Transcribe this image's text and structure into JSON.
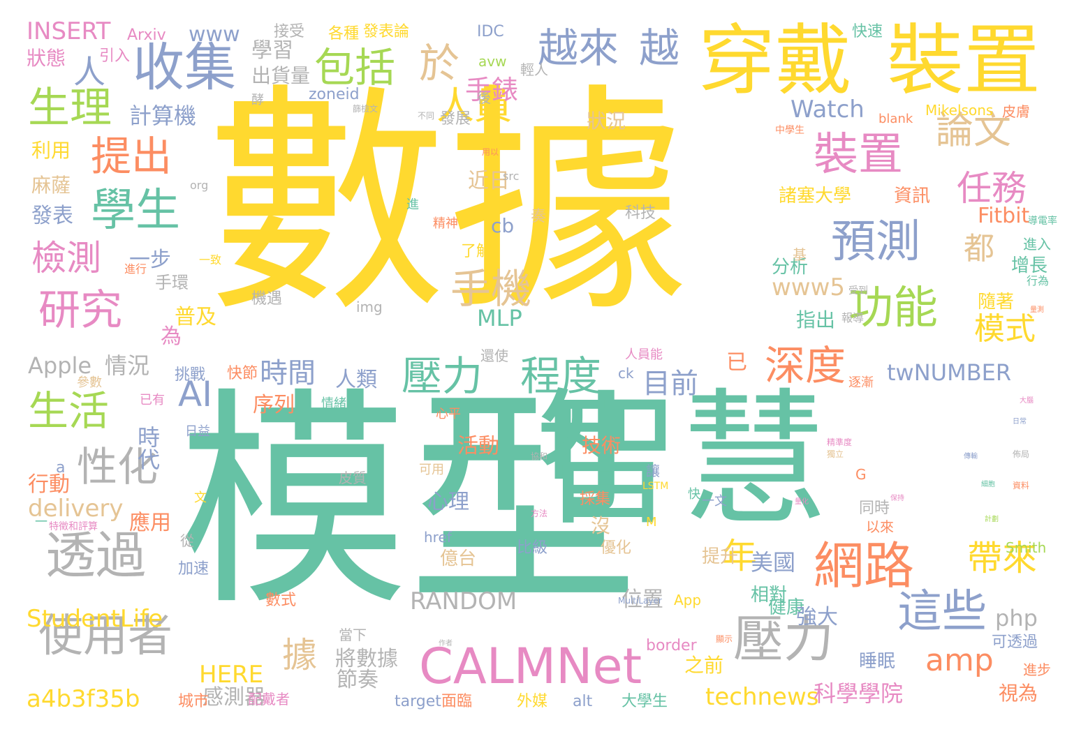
{
  "palette": {
    "yellow": "#ffd92f",
    "teal": "#66c2a5",
    "orange": "#fc8d62",
    "blue": "#8da0cb",
    "pink": "#e78ac3",
    "green": "#a6d854",
    "tan": "#e5c494",
    "gray": "#b3b3b3"
  },
  "words": [
    {
      "text": "數據",
      "color": "yellow"
    },
    {
      "text": "模型",
      "color": "teal"
    },
    {
      "text": "智慧",
      "color": "teal"
    },
    {
      "text": "穿戴",
      "color": "yellow"
    },
    {
      "text": "裝置",
      "color": "yellow"
    },
    {
      "text": "收集",
      "color": "blue"
    },
    {
      "text": "越來",
      "color": "blue"
    },
    {
      "text": "越",
      "color": "blue"
    },
    {
      "text": "包括",
      "color": "green"
    },
    {
      "text": "於",
      "color": "tan"
    },
    {
      "text": "生理",
      "color": "green"
    },
    {
      "text": "學生",
      "color": "teal"
    },
    {
      "text": "提出",
      "color": "orange"
    },
    {
      "text": "研究",
      "color": "pink"
    },
    {
      "text": "檢測",
      "color": "pink"
    },
    {
      "text": "生活",
      "color": "green"
    },
    {
      "text": "透過",
      "color": "gray"
    },
    {
      "text": "使用者",
      "color": "gray"
    },
    {
      "text": "性化",
      "color": "gray"
    },
    {
      "text": "人員",
      "color": "yellow"
    },
    {
      "text": "裝置",
      "color": "pink"
    },
    {
      "text": "論文",
      "color": "tan"
    },
    {
      "text": "預測",
      "color": "blue"
    },
    {
      "text": "功能",
      "color": "green"
    },
    {
      "text": "壓力",
      "color": "teal"
    },
    {
      "text": "程度",
      "color": "teal"
    },
    {
      "text": "手機",
      "color": "tan"
    },
    {
      "text": "深度",
      "color": "orange"
    },
    {
      "text": "網路",
      "color": "orange"
    },
    {
      "text": "壓力",
      "color": "gray"
    },
    {
      "text": "CALMNet",
      "color": "pink"
    },
    {
      "text": "這些",
      "color": "blue"
    },
    {
      "text": "帶來",
      "color": "yellow"
    },
    {
      "text": "amp",
      "color": "orange"
    },
    {
      "text": "任務",
      "color": "pink"
    },
    {
      "text": "模式",
      "color": "yellow"
    },
    {
      "text": "都",
      "color": "tan"
    },
    {
      "text": "人",
      "color": "blue"
    },
    {
      "text": "AI",
      "color": "blue"
    },
    {
      "text": "據",
      "color": "tan"
    },
    {
      "text": "年",
      "color": "yellow"
    },
    {
      "text": "時間",
      "color": "blue"
    },
    {
      "text": "目前",
      "color": "blue"
    },
    {
      "text": "StudentLife",
      "color": "yellow"
    },
    {
      "text": "RANDOM",
      "color": "gray"
    },
    {
      "text": "technews",
      "color": "yellow"
    },
    {
      "text": "twNUMBER",
      "color": "blue"
    },
    {
      "text": "a4b3f35b",
      "color": "yellow"
    },
    {
      "text": "科學學院",
      "color": "pink"
    },
    {
      "text": "INSERT",
      "color": "pink"
    },
    {
      "text": "Arxiv",
      "color": "pink"
    },
    {
      "text": "狀態",
      "color": "pink"
    },
    {
      "text": "引入",
      "color": "pink"
    },
    {
      "text": "www",
      "color": "blue"
    },
    {
      "text": "接受",
      "color": "gray"
    },
    {
      "text": "各種",
      "color": "yellow"
    },
    {
      "text": "發表論",
      "color": "yellow"
    },
    {
      "text": "IDC",
      "color": "blue"
    },
    {
      "text": "快速",
      "color": "teal"
    },
    {
      "text": "學習",
      "color": "gray"
    },
    {
      "text": "出貨量",
      "color": "gray"
    },
    {
      "text": "手錶",
      "color": "pink"
    },
    {
      "text": "計算機",
      "color": "blue"
    },
    {
      "text": "Watch",
      "color": "blue"
    },
    {
      "text": "狀況",
      "color": "tan"
    },
    {
      "text": "利用",
      "color": "yellow"
    },
    {
      "text": "麻薩",
      "color": "tan"
    },
    {
      "text": "發表",
      "color": "blue"
    },
    {
      "text": "近日",
      "color": "tan"
    },
    {
      "text": "cb",
      "color": "blue"
    },
    {
      "text": "諸塞大學",
      "color": "yellow"
    },
    {
      "text": "資訊",
      "color": "orange"
    },
    {
      "text": "Fitbit",
      "color": "orange"
    },
    {
      "text": "一步",
      "color": "blue"
    },
    {
      "text": "手環",
      "color": "gray"
    },
    {
      "text": "www5",
      "color": "tan"
    },
    {
      "text": "分析",
      "color": "teal"
    },
    {
      "text": "增長",
      "color": "teal"
    },
    {
      "text": "MLP",
      "color": "teal"
    },
    {
      "text": "隨著",
      "color": "yellow"
    },
    {
      "text": "指出",
      "color": "teal"
    },
    {
      "text": "普及",
      "color": "yellow"
    },
    {
      "text": "為",
      "color": "pink"
    },
    {
      "text": "情況",
      "color": "gray"
    },
    {
      "text": "Apple",
      "color": "gray"
    },
    {
      "text": "人類",
      "color": "blue"
    },
    {
      "text": "已",
      "color": "orange"
    },
    {
      "text": "時代",
      "color": "blue"
    },
    {
      "text": "序列",
      "color": "orange"
    },
    {
      "text": "活動",
      "color": "orange"
    },
    {
      "text": "技術",
      "color": "orange"
    },
    {
      "text": "行動",
      "color": "orange"
    },
    {
      "text": "delivery",
      "color": "tan"
    },
    {
      "text": "應用",
      "color": "orange"
    },
    {
      "text": "心理",
      "color": "blue"
    },
    {
      "text": "沒",
      "color": "tan"
    },
    {
      "text": "美國",
      "color": "blue"
    },
    {
      "text": "相對",
      "color": "teal"
    },
    {
      "text": "健康",
      "color": "teal"
    },
    {
      "text": "強大",
      "color": "blue"
    },
    {
      "text": "php",
      "color": "gray"
    },
    {
      "text": "睡眠",
      "color": "blue"
    },
    {
      "text": "視為",
      "color": "orange"
    },
    {
      "text": "HERE",
      "color": "yellow"
    },
    {
      "text": "感測器",
      "color": "gray"
    },
    {
      "text": "節奏",
      "color": "gray"
    },
    {
      "text": "將數據",
      "color": "gray"
    },
    {
      "text": "之前",
      "color": "yellow"
    },
    {
      "text": "位置",
      "color": "gray"
    },
    {
      "text": "提升",
      "color": "tan"
    },
    {
      "text": "億台",
      "color": "tan"
    },
    {
      "text": "比級",
      "color": "blue"
    },
    {
      "text": "優化",
      "color": "tan"
    },
    {
      "text": "加速",
      "color": "blue"
    },
    {
      "text": "數式",
      "color": "orange"
    },
    {
      "text": "App",
      "color": "yellow"
    },
    {
      "text": "外媒",
      "color": "yellow"
    },
    {
      "text": "大學生",
      "color": "teal"
    },
    {
      "text": "alt",
      "color": "blue"
    },
    {
      "text": "target",
      "color": "blue"
    },
    {
      "text": "面臨",
      "color": "orange"
    },
    {
      "text": "城市",
      "color": "orange"
    },
    {
      "text": "配戴者",
      "color": "pink"
    },
    {
      "text": "border",
      "color": "pink"
    },
    {
      "text": "可透過",
      "color": "blue"
    },
    {
      "text": "進步",
      "color": "orange"
    },
    {
      "text": "Smith",
      "color": "green"
    },
    {
      "text": "以來",
      "color": "orange"
    },
    {
      "text": "同時",
      "color": "gray"
    },
    {
      "text": "G",
      "color": "orange"
    },
    {
      "text": "皮膚",
      "color": "orange"
    },
    {
      "text": "Mikelsons",
      "color": "yellow"
    },
    {
      "text": "blank",
      "color": "orange"
    },
    {
      "text": "逐漸",
      "color": "orange"
    },
    {
      "text": "報導",
      "color": "gray"
    },
    {
      "text": "受到",
      "color": "gray"
    },
    {
      "text": "進入",
      "color": "teal"
    },
    {
      "text": "行為",
      "color": "teal"
    },
    {
      "text": "導電率",
      "color": "teal"
    },
    {
      "text": "科技",
      "color": "gray"
    },
    {
      "text": "奏",
      "color": "tan"
    },
    {
      "text": "精神",
      "color": "orange"
    },
    {
      "text": "進",
      "color": "teal"
    },
    {
      "text": "src",
      "color": "gray"
    },
    {
      "text": "基",
      "color": "tan"
    },
    {
      "text": "了解",
      "color": "yellow"
    },
    {
      "text": "一致",
      "color": "yellow"
    },
    {
      "text": "進行",
      "color": "orange"
    },
    {
      "text": "機遇",
      "color": "gray"
    },
    {
      "text": "img",
      "color": "gray"
    },
    {
      "text": "org",
      "color": "gray"
    },
    {
      "text": "avw",
      "color": "green"
    },
    {
      "text": "zoneid",
      "color": "blue"
    },
    {
      "text": "發展",
      "color": "gray"
    },
    {
      "text": "後",
      "color": "gray"
    },
    {
      "text": "輕人",
      "color": "gray"
    },
    {
      "text": "酵",
      "color": "gray"
    },
    {
      "text": "快節",
      "color": "orange"
    },
    {
      "text": "挑戰",
      "color": "blue"
    },
    {
      "text": "參數",
      "color": "tan"
    },
    {
      "text": "已有",
      "color": "pink"
    },
    {
      "text": "日益",
      "color": "blue"
    },
    {
      "text": "情緒",
      "color": "teal"
    },
    {
      "text": "還使",
      "color": "gray"
    },
    {
      "text": "人員能",
      "color": "pink"
    },
    {
      "text": "ck",
      "color": "blue"
    },
    {
      "text": "可用",
      "color": "tan"
    },
    {
      "text": "皮質",
      "color": "gray"
    },
    {
      "text": "a",
      "color": "blue"
    },
    {
      "text": "一",
      "color": "teal"
    },
    {
      "text": "從",
      "color": "gray"
    },
    {
      "text": "文",
      "color": "yellow"
    },
    {
      "text": "M",
      "color": "yellow"
    },
    {
      "text": "快",
      "color": "teal"
    },
    {
      "text": "讓",
      "color": "blue"
    },
    {
      "text": "一文",
      "color": "blue"
    },
    {
      "text": "href",
      "color": "blue"
    },
    {
      "text": "採集",
      "color": "orange"
    },
    {
      "text": "當下",
      "color": "gray"
    },
    {
      "text": "心平",
      "color": "orange"
    },
    {
      "text": "LSTM",
      "color": "yellow"
    },
    {
      "text": "中學生",
      "color": "orange"
    },
    {
      "text": "用以",
      "color": "orange"
    },
    {
      "text": "不同",
      "color": "gray"
    },
    {
      "text": "篩檢文",
      "color": "gray"
    },
    {
      "text": "特徵和評算",
      "color": "pink"
    },
    {
      "text": "協和",
      "color": "gray"
    },
    {
      "text": "方法",
      "color": "pink"
    },
    {
      "text": "資料",
      "color": "orange"
    },
    {
      "text": "獨立",
      "color": "tan"
    },
    {
      "text": "MultiLayer",
      "color": "blue"
    },
    {
      "text": "作者",
      "color": "gray"
    },
    {
      "text": "顯示",
      "color": "orange"
    },
    {
      "text": "精準度",
      "color": "pink"
    },
    {
      "text": "佈局",
      "color": "gray"
    },
    {
      "text": "傳輸",
      "color": "blue"
    },
    {
      "text": "量化",
      "color": "pink"
    },
    {
      "text": "保持",
      "color": "pink"
    },
    {
      "text": "細胞",
      "color": "teal"
    },
    {
      "text": "計劃",
      "color": "green"
    },
    {
      "text": "大腦",
      "color": "pink"
    },
    {
      "text": "量測",
      "color": "orange"
    },
    {
      "text": "日常",
      "color": "blue"
    }
  ]
}
